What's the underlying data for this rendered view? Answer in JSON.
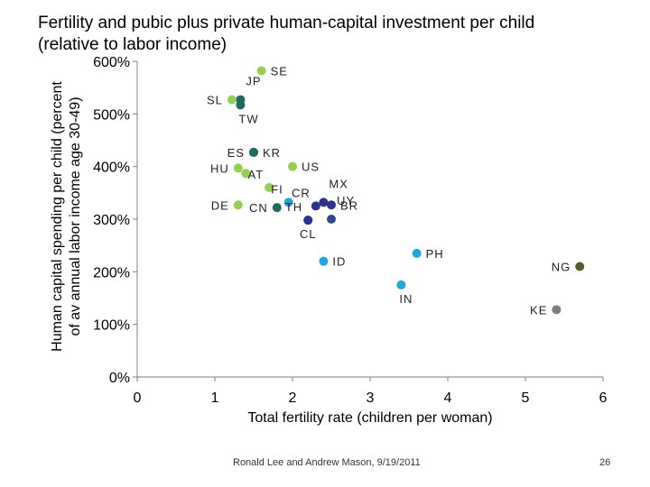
{
  "slide": {
    "footer": "Ronald Lee and Andrew Mason, 9/19/2011",
    "page_number": "26"
  },
  "chart_data": {
    "type": "scatter",
    "title_lines": [
      "Fertility and pubic plus private human-capital investment per child",
      "(relative to labor income)"
    ],
    "xlabel": "Total fertility rate (children per woman)",
    "ylabel_lines": [
      "Human capital spending per child (percent",
      "of av annual labor income age 30-49)"
    ],
    "xlim": [
      0,
      6
    ],
    "ylim": [
      0,
      6
    ],
    "x_ticks": [
      {
        "value": 0,
        "label": "0"
      },
      {
        "value": 1,
        "label": "1"
      },
      {
        "value": 2,
        "label": "2"
      },
      {
        "value": 3,
        "label": "3"
      },
      {
        "value": 4,
        "label": "4"
      },
      {
        "value": 5,
        "label": "5"
      },
      {
        "value": 6,
        "label": "6"
      }
    ],
    "y_ticks": [
      {
        "value": 0,
        "label": "0%"
      },
      {
        "value": 1,
        "label": "100%"
      },
      {
        "value": 2,
        "label": "200%"
      },
      {
        "value": 3,
        "label": "300%"
      },
      {
        "value": 4,
        "label": "400%"
      },
      {
        "value": 5,
        "label": "500%"
      },
      {
        "value": 6,
        "label": "600%"
      }
    ],
    "points": [
      {
        "label": "SE",
        "x": 1.6,
        "y": 5.82,
        "color": "#92d050",
        "label_pos": "right"
      },
      {
        "label": "JP",
        "x": 1.33,
        "y": 5.27,
        "color": "#1f6b60",
        "label_pos": "up-right"
      },
      {
        "label": "SL",
        "x": 1.22,
        "y": 5.27,
        "color": "#92d050",
        "label_pos": "left"
      },
      {
        "label": "TW",
        "x": 1.33,
        "y": 5.17,
        "color": "#1f6b60",
        "label_pos": "down-right"
      },
      {
        "label": "ES",
        "x": 1.5,
        "y": 4.27,
        "color": "#1f6b60",
        "label_pos": "left"
      },
      {
        "label": "KR",
        "x": 1.5,
        "y": 4.27,
        "color": "#1f6b60",
        "label_pos": "right"
      },
      {
        "label": "US",
        "x": 2.0,
        "y": 4.0,
        "color": "#92d050",
        "label_pos": "right"
      },
      {
        "label": "HU",
        "x": 1.3,
        "y": 3.97,
        "color": "#92d050",
        "label_pos": "left"
      },
      {
        "label": "",
        "x": 1.4,
        "y": 3.87,
        "color": "#92d050",
        "label_pos": "none"
      },
      {
        "label": "AT",
        "x": 1.7,
        "y": 3.6,
        "color": "#92d050",
        "label_pos": "up-left"
      },
      {
        "label": "FI",
        "x": 1.95,
        "y": 3.32,
        "color": "#1fa8e0",
        "label_pos": "up-left"
      },
      {
        "label": "DE",
        "x": 1.3,
        "y": 3.27,
        "color": "#92d050",
        "label_pos": "left"
      },
      {
        "label": "CN",
        "x": 1.8,
        "y": 3.22,
        "color": "#1f6b60",
        "label_pos": "left"
      },
      {
        "label": "TH",
        "x": 2.2,
        "y": 2.98,
        "color": "#2e3192",
        "label_pos": "up-left"
      },
      {
        "label": "CR",
        "x": 2.3,
        "y": 3.25,
        "color": "#2e3192",
        "label_pos": "up-left"
      },
      {
        "label": "MX",
        "x": 2.4,
        "y": 3.32,
        "color": "#2e3192",
        "label_pos": "up-right"
      },
      {
        "label": "BR",
        "x": 2.5,
        "y": 3.27,
        "color": "#2e3192",
        "label_pos": "right"
      },
      {
        "label": "UY",
        "x": 2.5,
        "y": 3.0,
        "color": "#2e4a8a",
        "label_pos": "up-right"
      },
      {
        "label": "CL",
        "x": 2.2,
        "y": 2.98,
        "color": "#2e3192",
        "label_pos": "below"
      },
      {
        "label": "ID",
        "x": 2.4,
        "y": 2.2,
        "color": "#1fa8e0",
        "label_pos": "right"
      },
      {
        "label": "PH",
        "x": 3.6,
        "y": 2.35,
        "color": "#1fa8e0",
        "label_pos": "right"
      },
      {
        "label": "IN",
        "x": 3.4,
        "y": 1.75,
        "color": "#1fa8e0",
        "label_pos": "down-right"
      },
      {
        "label": "NG",
        "x": 5.7,
        "y": 2.1,
        "color": "#4f6228",
        "label_pos": "left"
      },
      {
        "label": "KE",
        "x": 5.4,
        "y": 1.28,
        "color": "#7f7f7f",
        "label_pos": "left"
      }
    ]
  }
}
